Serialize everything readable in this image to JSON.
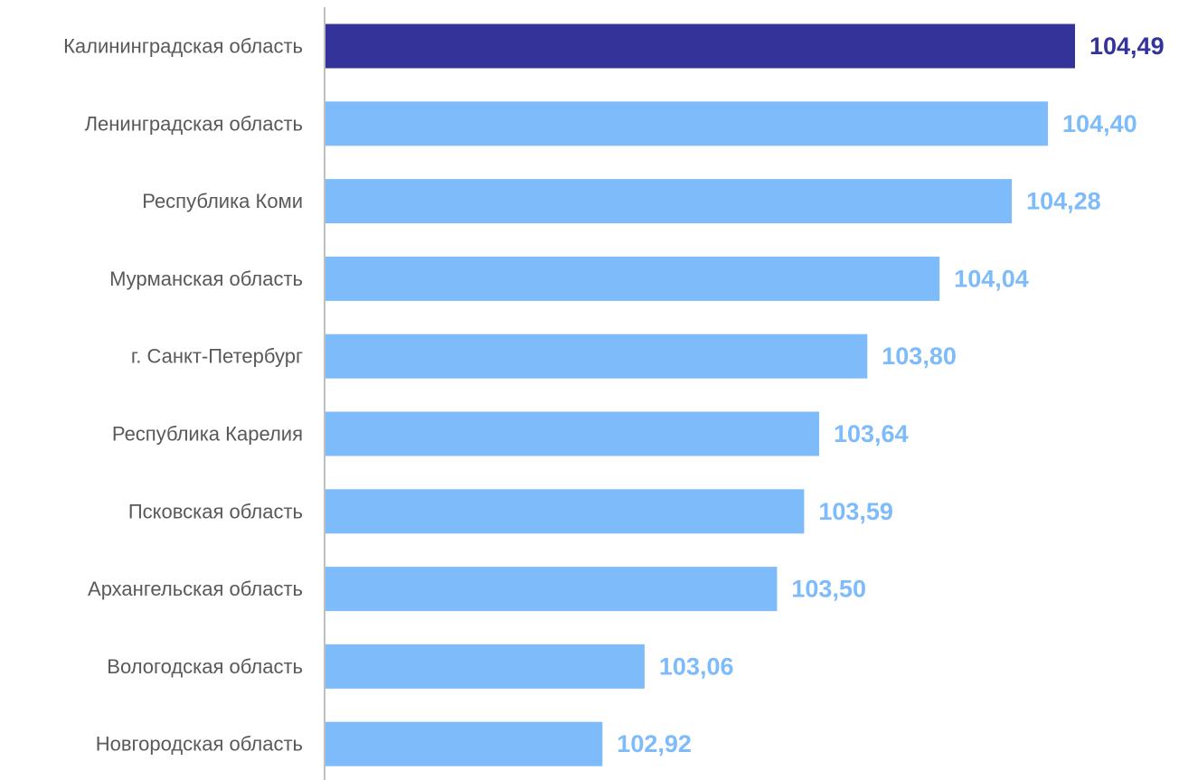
{
  "chart_data": {
    "type": "bar",
    "orientation": "horizontal",
    "title": "",
    "xlabel": "",
    "ylabel": "",
    "categories": [
      "Калининградская область",
      "Ленинградская область",
      "Республика Коми",
      "Мурманская область",
      "г. Санкт-Петербург",
      "Республика Карелия",
      "Псковская область",
      "Архангельская область",
      "Вологодская область",
      "Новгородская область"
    ],
    "values": [
      104.49,
      104.4,
      104.28,
      104.04,
      103.8,
      103.64,
      103.59,
      103.5,
      103.06,
      102.92
    ],
    "value_labels": [
      "104,49",
      "104,40",
      "104,28",
      "104,04",
      "103,80",
      "103,64",
      "103,59",
      "103,50",
      "103,06",
      "102,92"
    ],
    "xlim": [
      102.0,
      104.49
    ],
    "grid": false,
    "legend": "none",
    "highlight_index": 0,
    "colors": {
      "highlight": "#333399",
      "bar": "#7DBBFB",
      "axis": "#BFBFBF",
      "category_text": "#595959"
    }
  }
}
